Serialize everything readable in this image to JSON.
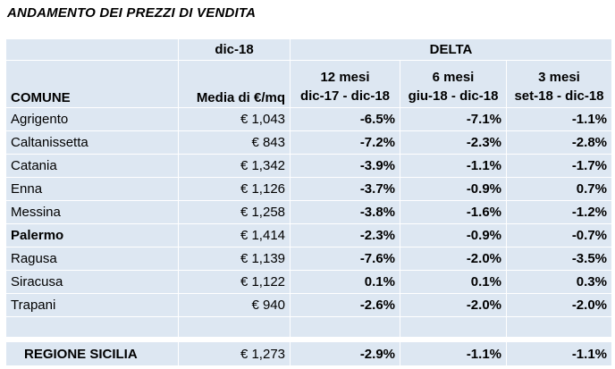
{
  "title": "ANDAMENTO DEI PREZZI DI VENDITA",
  "header": {
    "period": "dic-18",
    "delta": "DELTA",
    "comune": "COMUNE",
    "media": "Media di €/mq",
    "m12_top": "12 mesi",
    "m12_bot": "dic-17 - dic-18",
    "m6_top": "6 mesi",
    "m6_bot": "giu-18 - dic-18",
    "m3_top": "3 mesi",
    "m3_bot": "set-18 - dic-18"
  },
  "rows": [
    {
      "name": "Agrigento",
      "media": "€ 1,043",
      "d12": "-6.5%",
      "d6": "-7.1%",
      "d3": "-1.1%"
    },
    {
      "name": "Caltanissetta",
      "media": "€ 843",
      "d12": "-7.2%",
      "d6": "-2.3%",
      "d3": "-2.8%"
    },
    {
      "name": "Catania",
      "media": "€ 1,342",
      "d12": "-3.9%",
      "d6": "-1.1%",
      "d3": "-1.7%"
    },
    {
      "name": "Enna",
      "media": "€ 1,126",
      "d12": "-3.7%",
      "d6": "-0.9%",
      "d3": "0.7%"
    },
    {
      "name": "Messina",
      "media": "€ 1,258",
      "d12": "-3.8%",
      "d6": "-1.6%",
      "d3": "-1.2%"
    },
    {
      "name": "Palermo",
      "media": "€ 1,414",
      "d12": "-2.3%",
      "d6": "-0.9%",
      "d3": "-0.7%"
    },
    {
      "name": "Ragusa",
      "media": "€ 1,139",
      "d12": "-7.6%",
      "d6": "-2.0%",
      "d3": "-3.5%"
    },
    {
      "name": "Siracusa",
      "media": "€ 1,122",
      "d12": "0.1%",
      "d6": "0.1%",
      "d3": "0.3%"
    },
    {
      "name": "Trapani",
      "media": "€ 940",
      "d12": "-2.6%",
      "d6": "-2.0%",
      "d3": "-2.0%"
    }
  ],
  "total": {
    "name": "REGIONE SICILIA",
    "media": "€ 1,273",
    "d12": "-2.9%",
    "d6": "-1.1%",
    "d3": "-1.1%"
  }
}
